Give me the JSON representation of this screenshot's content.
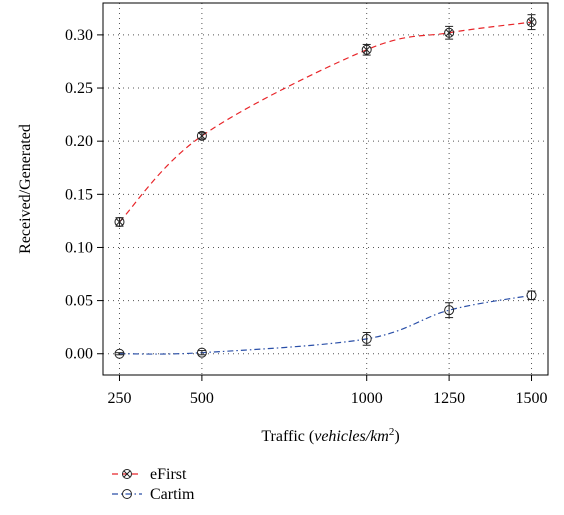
{
  "chart_data": {
    "type": "line",
    "xlabel_prefix": "Traffic (",
    "xlabel_italic": "vehicles/km",
    "xlabel_sup": "2",
    "xlabel_suffix": ")",
    "ylabel": "Received/Generated",
    "x": [
      250,
      500,
      1000,
      1250,
      1500
    ],
    "x_tick_labels": [
      "250",
      "500",
      "1000",
      "1250",
      "1500"
    ],
    "y_ticks": [
      0.0,
      0.05,
      0.1,
      0.15,
      0.2,
      0.25,
      0.3
    ],
    "y_tick_labels": [
      "0.00",
      "0.05",
      "0.10",
      "0.15",
      "0.20",
      "0.25",
      "0.30"
    ],
    "xlim": [
      200,
      1550
    ],
    "ylim": [
      -0.02,
      0.33
    ],
    "grid": true,
    "legend_position": "below",
    "series": [
      {
        "name": "eFirst",
        "color": "#e8262a",
        "dash": "dashed",
        "marker": "circle-x",
        "values": [
          0.124,
          0.205,
          0.286,
          0.302,
          0.312
        ],
        "errors": [
          0.004,
          0.003,
          0.005,
          0.006,
          0.007
        ]
      },
      {
        "name": "Cartim",
        "color": "#2a4fa8",
        "dash": "dashdot",
        "marker": "circle",
        "values": [
          0.0,
          0.001,
          0.014,
          0.041,
          0.055
        ],
        "errors": [
          0.001,
          0.002,
          0.006,
          0.007,
          0.004
        ]
      }
    ]
  }
}
